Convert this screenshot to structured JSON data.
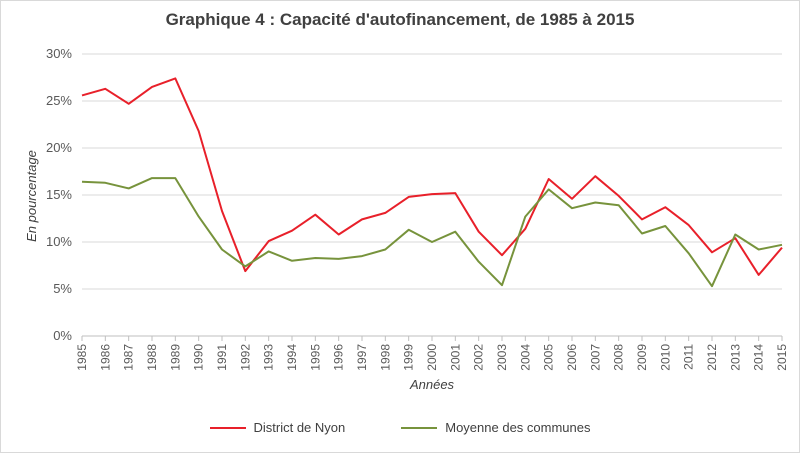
{
  "chart_data": {
    "type": "line",
    "title": "Graphique 4 : Capacité d'autofinancement, de 1985 à 2015",
    "xlabel": "Années",
    "ylabel": "En pourcentage",
    "ylim": [
      0,
      30
    ],
    "yticks": [
      "0%",
      "5%",
      "10%",
      "15%",
      "20%",
      "25%",
      "30%"
    ],
    "y_tick_values": [
      0,
      5,
      10,
      15,
      20,
      25,
      30
    ],
    "grid": "horizontal",
    "legend_position": "bottom",
    "categories": [
      "1985",
      "1986",
      "1987",
      "1988",
      "1989",
      "1990",
      "1991",
      "1992",
      "1993",
      "1994",
      "1995",
      "1996",
      "1997",
      "1998",
      "1999",
      "2000",
      "2001",
      "2002",
      "2003",
      "2004",
      "2005",
      "2006",
      "2007",
      "2008",
      "2009",
      "2010",
      "2011",
      "2012",
      "2013",
      "2014",
      "2015"
    ],
    "series": [
      {
        "name": "District de Nyon",
        "color": "#e8202a",
        "values": [
          25.6,
          26.3,
          24.7,
          26.5,
          27.4,
          21.8,
          13.3,
          6.9,
          10.1,
          11.2,
          12.9,
          10.8,
          12.4,
          13.1,
          14.8,
          15.1,
          15.2,
          11.1,
          8.6,
          11.4,
          16.7,
          14.6,
          17.0,
          14.9,
          12.4,
          13.7,
          11.8,
          8.9,
          10.4,
          6.5,
          9.4
        ]
      },
      {
        "name": "Moyenne des communes",
        "color": "#77933c",
        "values": [
          16.4,
          16.3,
          15.7,
          16.8,
          16.8,
          12.7,
          9.2,
          7.4,
          9.0,
          8.0,
          8.3,
          8.2,
          8.5,
          9.2,
          11.3,
          10.0,
          11.1,
          7.9,
          5.4,
          12.7,
          15.6,
          13.6,
          14.2,
          13.9,
          10.9,
          11.7,
          8.8,
          5.3,
          10.8,
          9.2,
          9.7
        ]
      }
    ]
  }
}
